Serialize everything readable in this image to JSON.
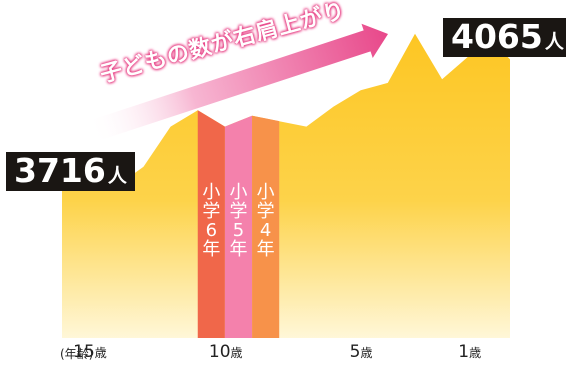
{
  "chart_data": {
    "type": "area",
    "x_direction": "descending-age",
    "xlabel": "(年齢)",
    "x_ticks": [
      {
        "age": 15,
        "label": "15",
        "unit": "歳"
      },
      {
        "age": 10,
        "label": "10",
        "unit": "歳"
      },
      {
        "age": 5,
        "label": "5",
        "unit": "歳"
      },
      {
        "age": 1,
        "label": "1",
        "unit": "歳"
      }
    ],
    "series": [
      {
        "color": "#fdcb2a",
        "points": [
          {
            "age": 16.5,
            "value": 3716
          },
          {
            "age": 15.5,
            "value": 3734
          },
          {
            "age": 14.5,
            "value": 3716
          },
          {
            "age": 13.5,
            "value": 3770
          },
          {
            "age": 12.5,
            "value": 3880
          },
          {
            "age": 11.5,
            "value": 3925
          },
          {
            "age": 10.5,
            "value": 3880
          },
          {
            "age": 9.5,
            "value": 3910
          },
          {
            "age": 8.5,
            "value": 3895
          },
          {
            "age": 7.5,
            "value": 3880
          },
          {
            "age": 6.5,
            "value": 3935
          },
          {
            "age": 5.5,
            "value": 3980
          },
          {
            "age": 4.5,
            "value": 4000
          },
          {
            "age": 3.5,
            "value": 4135
          },
          {
            "age": 2.5,
            "value": 4010
          },
          {
            "age": 1.5,
            "value": 4075
          },
          {
            "age": 0.5,
            "value": 4100
          },
          {
            "age": 0.0,
            "value": 4065
          }
        ]
      }
    ],
    "ylim": [
      3300,
      4200
    ],
    "callouts": [
      {
        "id": "start",
        "value": "3716",
        "unit": "人"
      },
      {
        "id": "end",
        "value": "4065",
        "unit": "人"
      }
    ],
    "highlight_bands": [
      {
        "label": "小学6年",
        "age_from": 11.5,
        "age_to": 10.5,
        "color": "#f0674a"
      },
      {
        "label": "小学5年",
        "age_from": 10.5,
        "age_to": 9.5,
        "color": "#f481ac"
      },
      {
        "label": "小学4年",
        "age_from": 9.5,
        "age_to": 8.5,
        "color": "#f7924a"
      }
    ],
    "headline": "子どもの数が右肩上がり",
    "colors": {
      "area": "#fdcb2a",
      "arrow_start": "#ffffff",
      "arrow_end": "#e8488a",
      "callout_bg": "#1a1613"
    }
  }
}
